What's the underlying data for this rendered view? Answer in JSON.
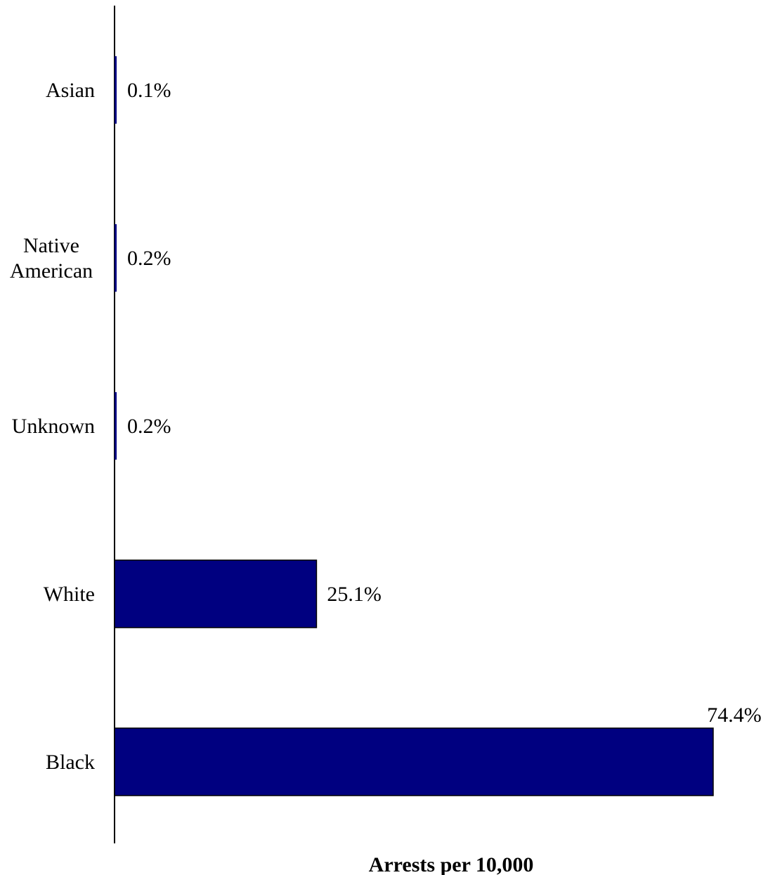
{
  "chart_data": {
    "type": "bar",
    "orientation": "horizontal",
    "categories": [
      "Asian",
      "Native\nAmerican",
      "Unknown",
      "White",
      "Black"
    ],
    "values": [
      0.1,
      0.2,
      0.2,
      25.1,
      74.4
    ],
    "data_labels": [
      "0.1%",
      "0.2%",
      "0.2%",
      "25.1%",
      "74.4%"
    ],
    "xlabel": "Arrests per 10,000",
    "ylabel": "",
    "xlim": [
      0,
      74.4
    ],
    "grid": false,
    "bar_color": "#000080",
    "bar_edge_color": "#000000"
  }
}
